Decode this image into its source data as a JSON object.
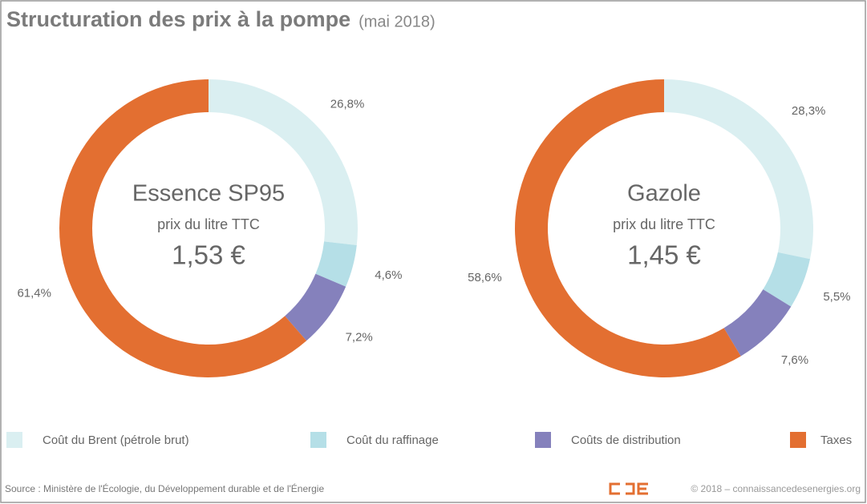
{
  "title": "Structuration des prix à la pompe",
  "subtitle": "(mai 2018)",
  "source": "Source : Ministère de l'Écologie, du Développement durable et de l'Énergie",
  "credit": "© 2018 – connaissancedesenergies.org",
  "chart_data": [
    {
      "type": "pie",
      "title": "Essence SP95",
      "subtitle": "prix du litre TTC",
      "annotation": "1,53 €",
      "categories": [
        "Coût du Brent (pétrole brut)",
        "Coût du raffinage",
        "Coûts de distribution",
        "Taxes"
      ],
      "values": [
        26.8,
        4.6,
        7.2,
        61.4
      ],
      "value_labels": [
        "26,8%",
        "4,6%",
        "7,2%",
        "61,4%"
      ],
      "colors": [
        "#daeff1",
        "#b5dfe7",
        "#8581bc",
        "#e36f31"
      ]
    },
    {
      "type": "pie",
      "title": "Gazole",
      "subtitle": "prix du litre TTC",
      "annotation": "1,45 €",
      "categories": [
        "Coût du Brent (pétrole brut)",
        "Coût du raffinage",
        "Coûts de distribution",
        "Taxes"
      ],
      "values": [
        28.3,
        5.5,
        7.6,
        58.6
      ],
      "value_labels": [
        "28,3%",
        "5,5%",
        "7,6%",
        "58,6%"
      ],
      "colors": [
        "#daeff1",
        "#b5dfe7",
        "#8581bc",
        "#e36f31"
      ]
    }
  ]
}
